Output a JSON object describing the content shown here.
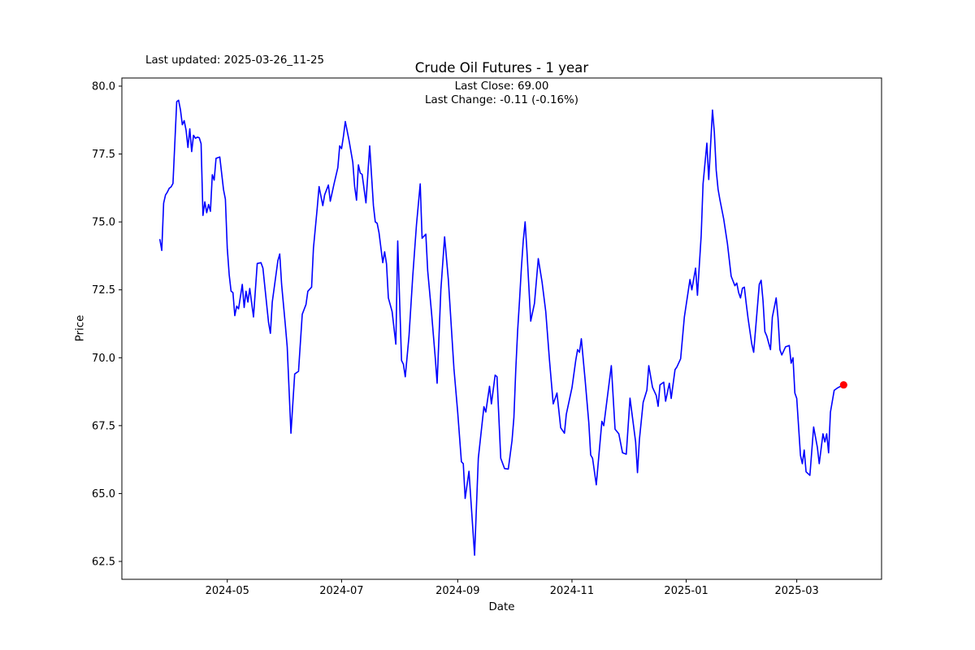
{
  "figure": {
    "last_updated": "Last updated: 2025-03-26_11-25",
    "title": "Crude Oil Futures - 1 year",
    "subtitle_line1": "Last Close: 69.00",
    "subtitle_line2": "Last Change: -0.11 (-0.16%)",
    "xlabel": "Date",
    "ylabel": "Price",
    "background_color": "#ffffff",
    "axis_color": "#000000"
  },
  "chart_data": {
    "type": "line",
    "title": "Crude Oil Futures - 1 year",
    "xlabel": "Date",
    "ylabel": "Price",
    "grid": false,
    "legend": null,
    "line_color": "#0000ff",
    "line_width": 1.6,
    "last_marker_color": "#ff0000",
    "last_close": 69.0,
    "last_change": "-0.11 (-0.16%)",
    "ylim": [
      61.85,
      80.31
    ],
    "y_ticks": [
      80.0,
      77.5,
      75.0,
      72.5,
      70.0,
      67.5,
      65.0,
      62.5
    ],
    "x_ticks": [
      {
        "label": "2024-05",
        "date": "2024-05-01"
      },
      {
        "label": "2024-07",
        "date": "2024-07-01"
      },
      {
        "label": "2024-09",
        "date": "2024-09-01"
      },
      {
        "label": "2024-11",
        "date": "2024-11-01"
      },
      {
        "label": "2025-01",
        "date": "2025-01-01"
      },
      {
        "label": "2025-03",
        "date": "2025-03-01"
      }
    ],
    "series_name": "Close price",
    "points": [
      [
        "2024-03-26",
        74.35
      ],
      [
        "2024-03-27",
        73.95
      ],
      [
        "2024-03-28",
        75.69
      ],
      [
        "2024-03-29",
        75.99
      ],
      [
        "2024-03-30",
        76.1
      ],
      [
        "2024-03-31",
        76.24
      ],
      [
        "2024-04-01",
        76.29
      ],
      [
        "2024-04-02",
        76.42
      ],
      [
        "2024-04-04",
        79.43
      ],
      [
        "2024-04-05",
        79.48
      ],
      [
        "2024-04-06",
        79.13
      ],
      [
        "2024-04-07",
        78.58
      ],
      [
        "2024-04-08",
        78.73
      ],
      [
        "2024-04-09",
        78.38
      ],
      [
        "2024-04-10",
        77.74
      ],
      [
        "2024-04-11",
        78.43
      ],
      [
        "2024-04-12",
        77.59
      ],
      [
        "2024-04-13",
        78.19
      ],
      [
        "2024-04-14",
        78.08
      ],
      [
        "2024-04-15",
        78.12
      ],
      [
        "2024-04-16",
        78.1
      ],
      [
        "2024-04-17",
        77.88
      ],
      [
        "2024-04-18",
        75.24
      ],
      [
        "2024-04-19",
        75.74
      ],
      [
        "2024-04-20",
        75.34
      ],
      [
        "2024-04-21",
        75.64
      ],
      [
        "2024-04-22",
        75.39
      ],
      [
        "2024-04-23",
        76.74
      ],
      [
        "2024-04-24",
        76.54
      ],
      [
        "2024-04-25",
        77.34
      ],
      [
        "2024-04-27",
        77.39
      ],
      [
        "2024-04-29",
        76.19
      ],
      [
        "2024-04-30",
        75.84
      ],
      [
        "2024-05-01",
        74.04
      ],
      [
        "2024-05-02",
        73.05
      ],
      [
        "2024-05-03",
        72.45
      ],
      [
        "2024-05-04",
        72.4
      ],
      [
        "2024-05-05",
        71.55
      ],
      [
        "2024-05-06",
        71.9
      ],
      [
        "2024-05-07",
        71.8
      ],
      [
        "2024-05-09",
        72.7
      ],
      [
        "2024-05-10",
        71.85
      ],
      [
        "2024-05-11",
        72.45
      ],
      [
        "2024-05-12",
        72.05
      ],
      [
        "2024-05-13",
        72.55
      ],
      [
        "2024-05-15",
        71.5
      ],
      [
        "2024-05-17",
        73.47
      ],
      [
        "2024-05-19",
        73.5
      ],
      [
        "2024-05-20",
        73.3
      ],
      [
        "2024-05-23",
        71.3
      ],
      [
        "2024-05-24",
        70.9
      ],
      [
        "2024-05-25",
        72.05
      ],
      [
        "2024-05-28",
        73.57
      ],
      [
        "2024-05-29",
        73.82
      ],
      [
        "2024-05-30",
        72.7
      ],
      [
        "2024-06-01",
        71.2
      ],
      [
        "2024-06-02",
        70.4
      ],
      [
        "2024-06-04",
        67.22
      ],
      [
        "2024-06-06",
        69.4
      ],
      [
        "2024-06-08",
        69.5
      ],
      [
        "2024-06-10",
        71.6
      ],
      [
        "2024-06-12",
        71.96
      ],
      [
        "2024-06-13",
        72.45
      ],
      [
        "2024-06-15",
        72.6
      ],
      [
        "2024-06-16",
        74.04
      ],
      [
        "2024-06-18",
        75.5
      ],
      [
        "2024-06-19",
        76.3
      ],
      [
        "2024-06-21",
        75.6
      ],
      [
        "2024-06-22",
        76.0
      ],
      [
        "2024-06-24",
        76.36
      ],
      [
        "2024-06-25",
        75.76
      ],
      [
        "2024-06-27",
        76.41
      ],
      [
        "2024-06-29",
        77.0
      ],
      [
        "2024-06-30",
        77.8
      ],
      [
        "2024-07-01",
        77.7
      ],
      [
        "2024-07-02",
        78.15
      ],
      [
        "2024-07-03",
        78.7
      ],
      [
        "2024-07-05",
        78.0
      ],
      [
        "2024-07-07",
        77.2
      ],
      [
        "2024-07-08",
        76.3
      ],
      [
        "2024-07-09",
        75.8
      ],
      [
        "2024-07-10",
        77.1
      ],
      [
        "2024-07-11",
        76.8
      ],
      [
        "2024-07-12",
        76.75
      ],
      [
        "2024-07-14",
        75.7
      ],
      [
        "2024-07-16",
        77.8
      ],
      [
        "2024-07-18",
        75.6
      ],
      [
        "2024-07-19",
        75.0
      ],
      [
        "2024-07-20",
        74.95
      ],
      [
        "2024-07-21",
        74.6
      ],
      [
        "2024-07-23",
        73.5
      ],
      [
        "2024-07-24",
        73.9
      ],
      [
        "2024-07-25",
        73.46
      ],
      [
        "2024-07-26",
        72.2
      ],
      [
        "2024-07-28",
        71.7
      ],
      [
        "2024-07-30",
        70.5
      ],
      [
        "2024-07-31",
        74.3
      ],
      [
        "2024-08-02",
        69.9
      ],
      [
        "2024-08-03",
        69.76
      ],
      [
        "2024-08-04",
        69.3
      ],
      [
        "2024-08-06",
        70.8
      ],
      [
        "2024-08-08",
        73.0
      ],
      [
        "2024-08-10",
        74.9
      ],
      [
        "2024-08-12",
        76.4
      ],
      [
        "2024-08-13",
        74.4
      ],
      [
        "2024-08-15",
        74.55
      ],
      [
        "2024-08-16",
        73.2
      ],
      [
        "2024-08-18",
        71.7
      ],
      [
        "2024-08-20",
        70.0
      ],
      [
        "2024-08-21",
        69.06
      ],
      [
        "2024-08-23",
        72.5
      ],
      [
        "2024-08-25",
        74.45
      ],
      [
        "2024-08-27",
        72.88
      ],
      [
        "2024-08-30",
        69.6
      ],
      [
        "2024-09-01",
        68.0
      ],
      [
        "2024-09-03",
        66.17
      ],
      [
        "2024-09-04",
        66.1
      ],
      [
        "2024-09-05",
        64.82
      ],
      [
        "2024-09-07",
        65.82
      ],
      [
        "2024-09-10",
        62.73
      ],
      [
        "2024-09-12",
        66.3
      ],
      [
        "2024-09-15",
        68.2
      ],
      [
        "2024-09-16",
        68.0
      ],
      [
        "2024-09-18",
        68.95
      ],
      [
        "2024-09-19",
        68.3
      ],
      [
        "2024-09-21",
        69.36
      ],
      [
        "2024-09-22",
        69.3
      ],
      [
        "2024-09-24",
        66.3
      ],
      [
        "2024-09-26",
        65.92
      ],
      [
        "2024-09-28",
        65.9
      ],
      [
        "2024-09-30",
        66.95
      ],
      [
        "2024-10-01",
        67.8
      ],
      [
        "2024-10-02",
        69.56
      ],
      [
        "2024-10-03",
        71.0
      ],
      [
        "2024-10-04",
        72.1
      ],
      [
        "2024-10-05",
        73.3
      ],
      [
        "2024-10-06",
        74.3
      ],
      [
        "2024-10-07",
        75.0
      ],
      [
        "2024-10-08",
        73.9
      ],
      [
        "2024-10-10",
        71.35
      ],
      [
        "2024-10-12",
        72.0
      ],
      [
        "2024-10-14",
        73.65
      ],
      [
        "2024-10-16",
        72.8
      ],
      [
        "2024-10-18",
        71.7
      ],
      [
        "2024-10-20",
        69.9
      ],
      [
        "2024-10-21",
        69.1
      ],
      [
        "2024-10-22",
        68.3
      ],
      [
        "2024-10-24",
        68.7
      ],
      [
        "2024-10-26",
        67.42
      ],
      [
        "2024-10-28",
        67.22
      ],
      [
        "2024-10-29",
        67.92
      ],
      [
        "2024-11-01",
        68.9
      ],
      [
        "2024-11-03",
        69.9
      ],
      [
        "2024-11-04",
        70.3
      ],
      [
        "2024-11-05",
        70.2
      ],
      [
        "2024-11-06",
        70.7
      ],
      [
        "2024-11-08",
        69.2
      ],
      [
        "2024-11-10",
        67.6
      ],
      [
        "2024-11-11",
        66.42
      ],
      [
        "2024-11-12",
        66.3
      ],
      [
        "2024-11-14",
        65.32
      ],
      [
        "2024-11-17",
        67.66
      ],
      [
        "2024-11-18",
        67.5
      ],
      [
        "2024-11-22",
        69.71
      ],
      [
        "2024-11-24",
        67.37
      ],
      [
        "2024-11-26",
        67.2
      ],
      [
        "2024-11-28",
        66.5
      ],
      [
        "2024-11-30",
        66.45
      ],
      [
        "2024-12-02",
        68.51
      ],
      [
        "2024-12-05",
        66.9
      ],
      [
        "2024-12-06",
        65.77
      ],
      [
        "2024-12-07",
        67.0
      ],
      [
        "2024-12-09",
        68.36
      ],
      [
        "2024-12-11",
        68.81
      ],
      [
        "2024-12-12",
        69.71
      ],
      [
        "2024-12-14",
        68.91
      ],
      [
        "2024-12-16",
        68.61
      ],
      [
        "2024-12-17",
        68.21
      ],
      [
        "2024-12-18",
        69.0
      ],
      [
        "2024-12-20",
        69.1
      ],
      [
        "2024-12-21",
        68.4
      ],
      [
        "2024-12-23",
        69.06
      ],
      [
        "2024-12-24",
        68.5
      ],
      [
        "2024-12-26",
        69.56
      ],
      [
        "2024-12-27",
        69.66
      ],
      [
        "2024-12-29",
        69.96
      ],
      [
        "2024-12-31",
        71.5
      ],
      [
        "2025-01-03",
        72.88
      ],
      [
        "2025-01-04",
        72.5
      ],
      [
        "2025-01-06",
        73.3
      ],
      [
        "2025-01-07",
        72.3
      ],
      [
        "2025-01-09",
        74.5
      ],
      [
        "2025-01-10",
        76.4
      ],
      [
        "2025-01-12",
        77.9
      ],
      [
        "2025-01-13",
        76.56
      ],
      [
        "2025-01-15",
        79.12
      ],
      [
        "2025-01-16",
        78.3
      ],
      [
        "2025-01-17",
        76.9
      ],
      [
        "2025-01-18",
        76.2
      ],
      [
        "2025-01-19",
        75.81
      ],
      [
        "2025-01-21",
        75.11
      ],
      [
        "2025-01-23",
        74.2
      ],
      [
        "2025-01-24",
        73.6
      ],
      [
        "2025-01-25",
        73.0
      ],
      [
        "2025-01-27",
        72.65
      ],
      [
        "2025-01-28",
        72.75
      ],
      [
        "2025-01-29",
        72.4
      ],
      [
        "2025-01-30",
        72.2
      ],
      [
        "2025-01-31",
        72.56
      ],
      [
        "2025-02-01",
        72.6
      ],
      [
        "2025-02-02",
        72.0
      ],
      [
        "2025-02-03",
        71.45
      ],
      [
        "2025-02-05",
        70.5
      ],
      [
        "2025-02-06",
        70.2
      ],
      [
        "2025-02-09",
        72.7
      ],
      [
        "2025-02-10",
        72.85
      ],
      [
        "2025-02-11",
        72.1
      ],
      [
        "2025-02-12",
        70.96
      ],
      [
        "2025-02-13",
        70.8
      ],
      [
        "2025-02-15",
        70.3
      ],
      [
        "2025-02-16",
        71.5
      ],
      [
        "2025-02-18",
        72.2
      ],
      [
        "2025-02-19",
        71.45
      ],
      [
        "2025-02-20",
        70.3
      ],
      [
        "2025-02-21",
        70.1
      ],
      [
        "2025-02-23",
        70.4
      ],
      [
        "2025-02-25",
        70.45
      ],
      [
        "2025-02-26",
        69.8
      ],
      [
        "2025-02-27",
        70.0
      ],
      [
        "2025-02-28",
        68.7
      ],
      [
        "2025-03-01",
        68.5
      ],
      [
        "2025-03-03",
        66.4
      ],
      [
        "2025-03-04",
        66.1
      ],
      [
        "2025-03-05",
        66.6
      ],
      [
        "2025-03-06",
        65.8
      ],
      [
        "2025-03-08",
        65.67
      ],
      [
        "2025-03-10",
        67.45
      ],
      [
        "2025-03-12",
        66.7
      ],
      [
        "2025-03-13",
        66.1
      ],
      [
        "2025-03-15",
        67.2
      ],
      [
        "2025-03-16",
        66.9
      ],
      [
        "2025-03-17",
        67.2
      ],
      [
        "2025-03-18",
        66.5
      ],
      [
        "2025-03-19",
        68.0
      ],
      [
        "2025-03-21",
        68.8
      ],
      [
        "2025-03-23",
        68.9
      ],
      [
        "2025-03-26",
        69.0
      ]
    ],
    "last_point": {
      "date": "2025-03-26",
      "value": 69.0
    }
  }
}
